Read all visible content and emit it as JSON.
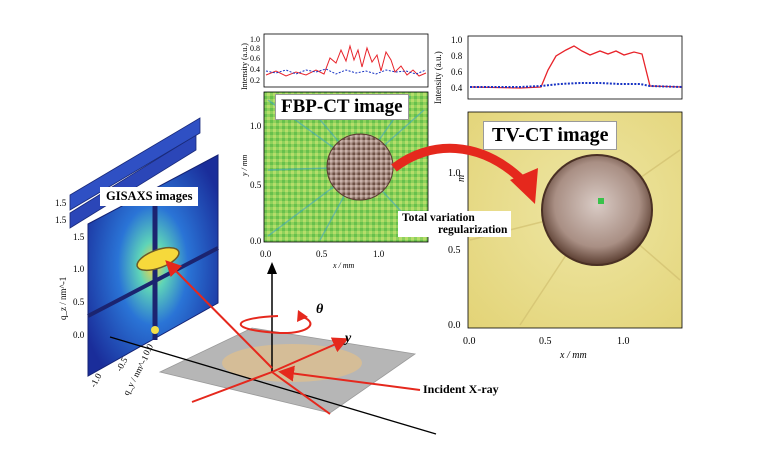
{
  "labels": {
    "fbp_title": "FBP-CT image",
    "tv_title": "TV-CT image",
    "gisaxs_title": "GISAXS images",
    "tv_regularization_line1": "Total variation",
    "tv_regularization_line2": "regularization",
    "incident": "Incident X-ray",
    "axis_theta": "θ",
    "axis_y": "y"
  },
  "fbp_profile": {
    "ylabel": "Intensity (a.u.)",
    "yticks": [
      "1.0",
      "0.8",
      "0.6",
      "0.4",
      "0.2"
    ]
  },
  "fbp_image": {
    "ylabel": "y / mm",
    "xlabel": "x / mm",
    "xticks": [
      "0.0",
      "0.5",
      "1.0"
    ],
    "yticks": [
      "1.0",
      "0.5",
      "0.0"
    ]
  },
  "tv_profile": {
    "ylabel": "Intensity (a.u.)",
    "yticks": [
      "1.0",
      "0.8",
      "0.6",
      "0.4"
    ]
  },
  "tv_image": {
    "ylabel": "m",
    "xlabel": "x / mm",
    "xticks": [
      "0.0",
      "0.5",
      "1.0"
    ],
    "yticks": [
      "1.0",
      "0.5",
      "0.0"
    ]
  },
  "gisaxs": {
    "ylabel": "q_z / nm^-1",
    "xlabel": "q_y / nm^-1",
    "yticks": [
      "1.5",
      "1.0",
      "0.5",
      "0.0"
    ],
    "back_yticks": [
      "1.5",
      "1.5"
    ],
    "xticks": [
      "-1.0",
      "-0.5",
      "0.0"
    ]
  },
  "colors": {
    "profile_red": "#e8232a",
    "profile_blue": "#1733c4",
    "arrow_red": "#e5281d",
    "tv_background": "#e6db86",
    "fbp_background": "#7fcc56",
    "sample_disk": "#b39a8e"
  }
}
